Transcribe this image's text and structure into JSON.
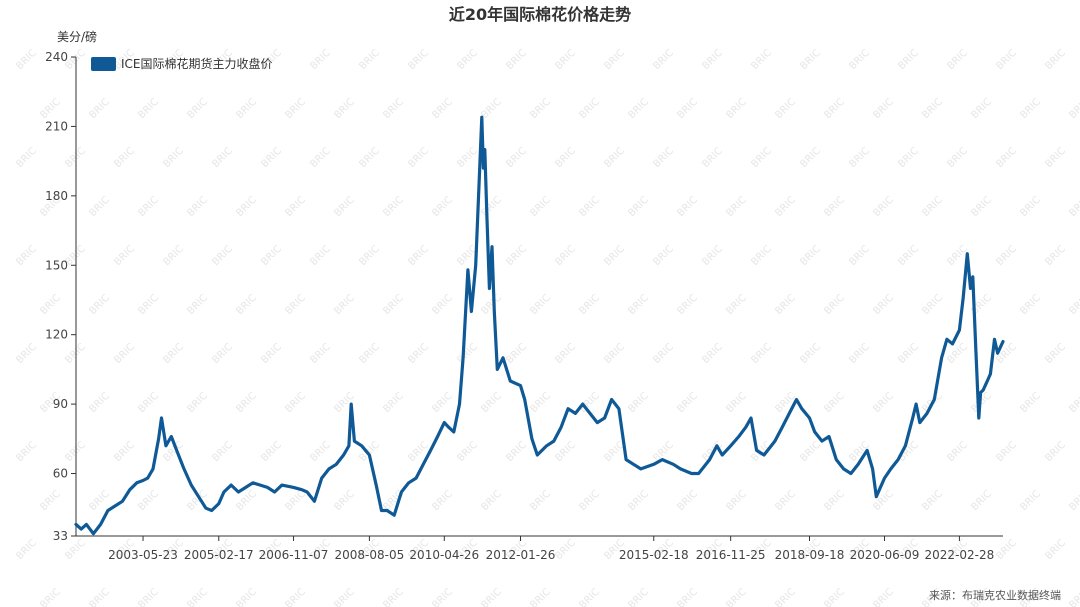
{
  "title": "近20年国际棉花价格走势",
  "source": "来源：布瑞克农业数据终端",
  "watermark": "BRIC",
  "colors": {
    "series": "#0f5a96",
    "axis": "#333333",
    "title": "#333333"
  },
  "chart_data": {
    "type": "line",
    "title": "近20年国际棉花价格走势",
    "ylabel": "美分/磅",
    "ylim": [
      33,
      240
    ],
    "yticks": [
      33,
      60,
      90,
      120,
      150,
      180,
      210,
      240
    ],
    "xlim": [
      "2001-11-06",
      "2023-03-01"
    ],
    "xticks": [
      "2003-05-23",
      "2005-02-17",
      "2006-11-07",
      "2008-08-05",
      "2010-04-26",
      "2012-01-26",
      "2015-02-18",
      "2016-11-25",
      "2018-09-18",
      "2020-06-09",
      "2022-02-28"
    ],
    "grid": false,
    "legend": "top-left",
    "series": [
      {
        "name": "ICE国际棉花期货主力收盘价",
        "color": "#0f5a96",
        "points": [
          [
            "2001-11-06",
            38
          ],
          [
            "2001-12-20",
            36
          ],
          [
            "2002-02-01",
            38
          ],
          [
            "2002-04-01",
            34
          ],
          [
            "2002-06-01",
            38
          ],
          [
            "2002-08-01",
            44
          ],
          [
            "2002-10-01",
            46
          ],
          [
            "2002-12-01",
            48
          ],
          [
            "2003-02-01",
            53
          ],
          [
            "2003-04-01",
            56
          ],
          [
            "2003-05-23",
            57
          ],
          [
            "2003-07-01",
            58
          ],
          [
            "2003-08-15",
            62
          ],
          [
            "2003-10-01",
            75
          ],
          [
            "2003-10-25",
            84
          ],
          [
            "2003-12-01",
            72
          ],
          [
            "2004-01-15",
            76
          ],
          [
            "2004-03-01",
            70
          ],
          [
            "2004-05-01",
            62
          ],
          [
            "2004-07-01",
            55
          ],
          [
            "2004-09-01",
            50
          ],
          [
            "2004-11-01",
            45
          ],
          [
            "2004-12-20",
            44
          ],
          [
            "2005-02-17",
            47
          ],
          [
            "2005-04-01",
            52
          ],
          [
            "2005-06-01",
            55
          ],
          [
            "2005-08-01",
            52
          ],
          [
            "2005-10-01",
            54
          ],
          [
            "2005-12-01",
            56
          ],
          [
            "2006-02-01",
            55
          ],
          [
            "2006-04-01",
            54
          ],
          [
            "2006-06-01",
            52
          ],
          [
            "2006-08-01",
            55
          ],
          [
            "2006-11-07",
            54
          ],
          [
            "2007-01-15",
            53
          ],
          [
            "2007-03-01",
            52
          ],
          [
            "2007-05-01",
            48
          ],
          [
            "2007-07-01",
            58
          ],
          [
            "2007-09-01",
            62
          ],
          [
            "2007-11-01",
            64
          ],
          [
            "2008-01-01",
            68
          ],
          [
            "2008-02-15",
            72
          ],
          [
            "2008-03-05",
            90
          ],
          [
            "2008-04-01",
            74
          ],
          [
            "2008-06-01",
            72
          ],
          [
            "2008-08-05",
            68
          ],
          [
            "2008-10-01",
            55
          ],
          [
            "2008-11-15",
            44
          ],
          [
            "2009-01-01",
            44
          ],
          [
            "2009-03-01",
            42
          ],
          [
            "2009-05-01",
            52
          ],
          [
            "2009-07-01",
            56
          ],
          [
            "2009-09-01",
            58
          ],
          [
            "2009-11-01",
            64
          ],
          [
            "2010-01-01",
            70
          ],
          [
            "2010-03-01",
            76
          ],
          [
            "2010-04-26",
            82
          ],
          [
            "2010-06-01",
            80
          ],
          [
            "2010-07-15",
            78
          ],
          [
            "2010-09-01",
            90
          ],
          [
            "2010-10-01",
            110
          ],
          [
            "2010-11-10",
            148
          ],
          [
            "2010-12-10",
            130
          ],
          [
            "2011-01-15",
            150
          ],
          [
            "2011-02-20",
            195
          ],
          [
            "2011-03-07",
            214
          ],
          [
            "2011-03-20",
            192
          ],
          [
            "2011-04-01",
            200
          ],
          [
            "2011-04-20",
            170
          ],
          [
            "2011-05-10",
            140
          ],
          [
            "2011-06-01",
            158
          ],
          [
            "2011-06-20",
            130
          ],
          [
            "2011-07-15",
            105
          ],
          [
            "2011-09-01",
            110
          ],
          [
            "2011-11-01",
            100
          ],
          [
            "2012-01-26",
            98
          ],
          [
            "2012-03-01",
            92
          ],
          [
            "2012-05-01",
            75
          ],
          [
            "2012-06-15",
            68
          ],
          [
            "2012-09-01",
            72
          ],
          [
            "2012-11-01",
            74
          ],
          [
            "2013-01-01",
            80
          ],
          [
            "2013-03-01",
            88
          ],
          [
            "2013-05-01",
            86
          ],
          [
            "2013-07-01",
            90
          ],
          [
            "2013-09-01",
            86
          ],
          [
            "2013-11-01",
            82
          ],
          [
            "2014-01-01",
            84
          ],
          [
            "2014-03-01",
            92
          ],
          [
            "2014-05-01",
            88
          ],
          [
            "2014-07-01",
            66
          ],
          [
            "2014-09-01",
            64
          ],
          [
            "2014-11-01",
            62
          ],
          [
            "2015-02-18",
            64
          ],
          [
            "2015-05-01",
            66
          ],
          [
            "2015-08-01",
            64
          ],
          [
            "2015-10-01",
            62
          ],
          [
            "2016-01-01",
            60
          ],
          [
            "2016-03-01",
            60
          ],
          [
            "2016-06-01",
            66
          ],
          [
            "2016-08-01",
            72
          ],
          [
            "2016-09-15",
            68
          ],
          [
            "2016-11-25",
            72
          ],
          [
            "2017-02-01",
            76
          ],
          [
            "2017-04-01",
            80
          ],
          [
            "2017-05-15",
            84
          ],
          [
            "2017-07-01",
            70
          ],
          [
            "2017-09-01",
            68
          ],
          [
            "2017-12-01",
            74
          ],
          [
            "2018-02-01",
            80
          ],
          [
            "2018-04-01",
            86
          ],
          [
            "2018-06-01",
            92
          ],
          [
            "2018-07-15",
            88
          ],
          [
            "2018-09-18",
            84
          ],
          [
            "2018-11-01",
            78
          ],
          [
            "2019-01-01",
            74
          ],
          [
            "2019-03-01",
            76
          ],
          [
            "2019-05-01",
            66
          ],
          [
            "2019-07-01",
            62
          ],
          [
            "2019-09-01",
            60
          ],
          [
            "2019-11-01",
            64
          ],
          [
            "2020-01-15",
            70
          ],
          [
            "2020-03-01",
            62
          ],
          [
            "2020-04-01",
            50
          ],
          [
            "2020-06-09",
            58
          ],
          [
            "2020-08-01",
            62
          ],
          [
            "2020-10-01",
            66
          ],
          [
            "2020-12-01",
            72
          ],
          [
            "2021-02-01",
            84
          ],
          [
            "2021-03-01",
            90
          ],
          [
            "2021-04-01",
            82
          ],
          [
            "2021-06-01",
            86
          ],
          [
            "2021-08-01",
            92
          ],
          [
            "2021-10-01",
            110
          ],
          [
            "2021-11-15",
            118
          ],
          [
            "2022-01-01",
            116
          ],
          [
            "2022-02-28",
            122
          ],
          [
            "2022-04-01",
            136
          ],
          [
            "2022-05-05",
            155
          ],
          [
            "2022-06-01",
            140
          ],
          [
            "2022-06-20",
            145
          ],
          [
            "2022-07-15",
            115
          ],
          [
            "2022-08-10",
            84
          ],
          [
            "2022-08-25",
            95
          ],
          [
            "2022-09-15",
            96
          ],
          [
            "2022-10-20",
            100
          ],
          [
            "2022-11-15",
            103
          ],
          [
            "2022-12-20",
            118
          ],
          [
            "2023-01-15",
            112
          ],
          [
            "2023-03-01",
            117
          ]
        ]
      }
    ]
  }
}
